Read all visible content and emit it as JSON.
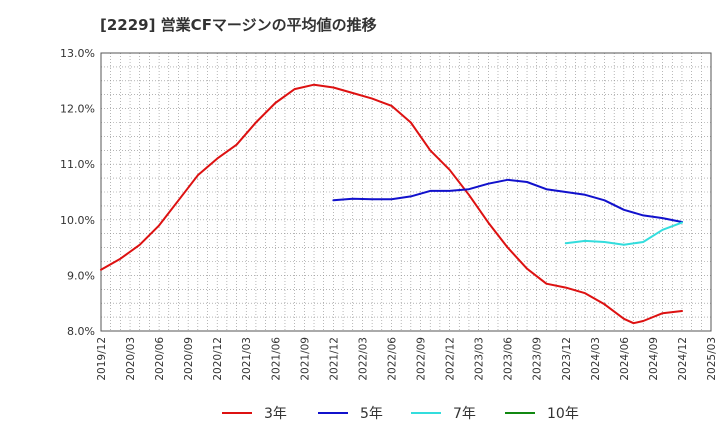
{
  "chart_data": {
    "type": "line",
    "title": "[2229]  営業CFマージンの平均値の推移",
    "xlabel": "",
    "ylabel": "",
    "ylim": [
      8.0,
      13.0
    ],
    "y_ticks": [
      "8.0%",
      "9.0%",
      "10.0%",
      "11.0%",
      "12.0%",
      "13.0%"
    ],
    "x_range": [
      "2019-12",
      "2025-03"
    ],
    "x_ticks": [
      "2019/12",
      "2020/03",
      "2020/06",
      "2020/09",
      "2020/12",
      "2021/03",
      "2021/06",
      "2021/09",
      "2021/12",
      "2022/03",
      "2022/06",
      "2022/09",
      "2022/12",
      "2023/03",
      "2023/06",
      "2023/09",
      "2023/12",
      "2024/03",
      "2024/06",
      "2024/09",
      "2024/12",
      "2025/03"
    ],
    "grid": true,
    "legend_position": "bottom",
    "series": [
      {
        "name": "3年",
        "color": "#dd1111",
        "points": [
          [
            "2019-12",
            9.1
          ],
          [
            "2020-02",
            9.3
          ],
          [
            "2020-04",
            9.55
          ],
          [
            "2020-06",
            9.9
          ],
          [
            "2020-08",
            10.35
          ],
          [
            "2020-10",
            10.8
          ],
          [
            "2020-12",
            11.1
          ],
          [
            "2021-02",
            11.35
          ],
          [
            "2021-04",
            11.75
          ],
          [
            "2021-06",
            12.1
          ],
          [
            "2021-08",
            12.35
          ],
          [
            "2021-10",
            12.43
          ],
          [
            "2021-12",
            12.38
          ],
          [
            "2022-02",
            12.28
          ],
          [
            "2022-04",
            12.18
          ],
          [
            "2022-06",
            12.05
          ],
          [
            "2022-08",
            11.75
          ],
          [
            "2022-10",
            11.25
          ],
          [
            "2022-12",
            10.9
          ],
          [
            "2023-02",
            10.45
          ],
          [
            "2023-04",
            9.95
          ],
          [
            "2023-06",
            9.5
          ],
          [
            "2023-08",
            9.12
          ],
          [
            "2023-10",
            8.85
          ],
          [
            "2023-12",
            8.78
          ],
          [
            "2024-02",
            8.68
          ],
          [
            "2024-04",
            8.48
          ],
          [
            "2024-06",
            8.22
          ],
          [
            "2024-07",
            8.14
          ],
          [
            "2024-08",
            8.18
          ],
          [
            "2024-10",
            8.32
          ],
          [
            "2024-12",
            8.36
          ]
        ]
      },
      {
        "name": "5年",
        "color": "#1111cc",
        "points": [
          [
            "2021-12",
            10.35
          ],
          [
            "2022-02",
            10.38
          ],
          [
            "2022-04",
            10.37
          ],
          [
            "2022-06",
            10.37
          ],
          [
            "2022-08",
            10.42
          ],
          [
            "2022-10",
            10.52
          ],
          [
            "2022-12",
            10.52
          ],
          [
            "2023-02",
            10.55
          ],
          [
            "2023-04",
            10.65
          ],
          [
            "2023-06",
            10.72
          ],
          [
            "2023-08",
            10.68
          ],
          [
            "2023-10",
            10.55
          ],
          [
            "2023-12",
            10.5
          ],
          [
            "2024-02",
            10.45
          ],
          [
            "2024-04",
            10.35
          ],
          [
            "2024-06",
            10.18
          ],
          [
            "2024-08",
            10.08
          ],
          [
            "2024-10",
            10.03
          ],
          [
            "2024-12",
            9.96
          ]
        ]
      },
      {
        "name": "7年",
        "color": "#33dddd",
        "points": [
          [
            "2023-12",
            9.58
          ],
          [
            "2024-02",
            9.62
          ],
          [
            "2024-04",
            9.6
          ],
          [
            "2024-06",
            9.55
          ],
          [
            "2024-08",
            9.6
          ],
          [
            "2024-10",
            9.82
          ],
          [
            "2024-12",
            9.95
          ]
        ]
      },
      {
        "name": "10年",
        "color": "#118811",
        "points": []
      }
    ]
  }
}
